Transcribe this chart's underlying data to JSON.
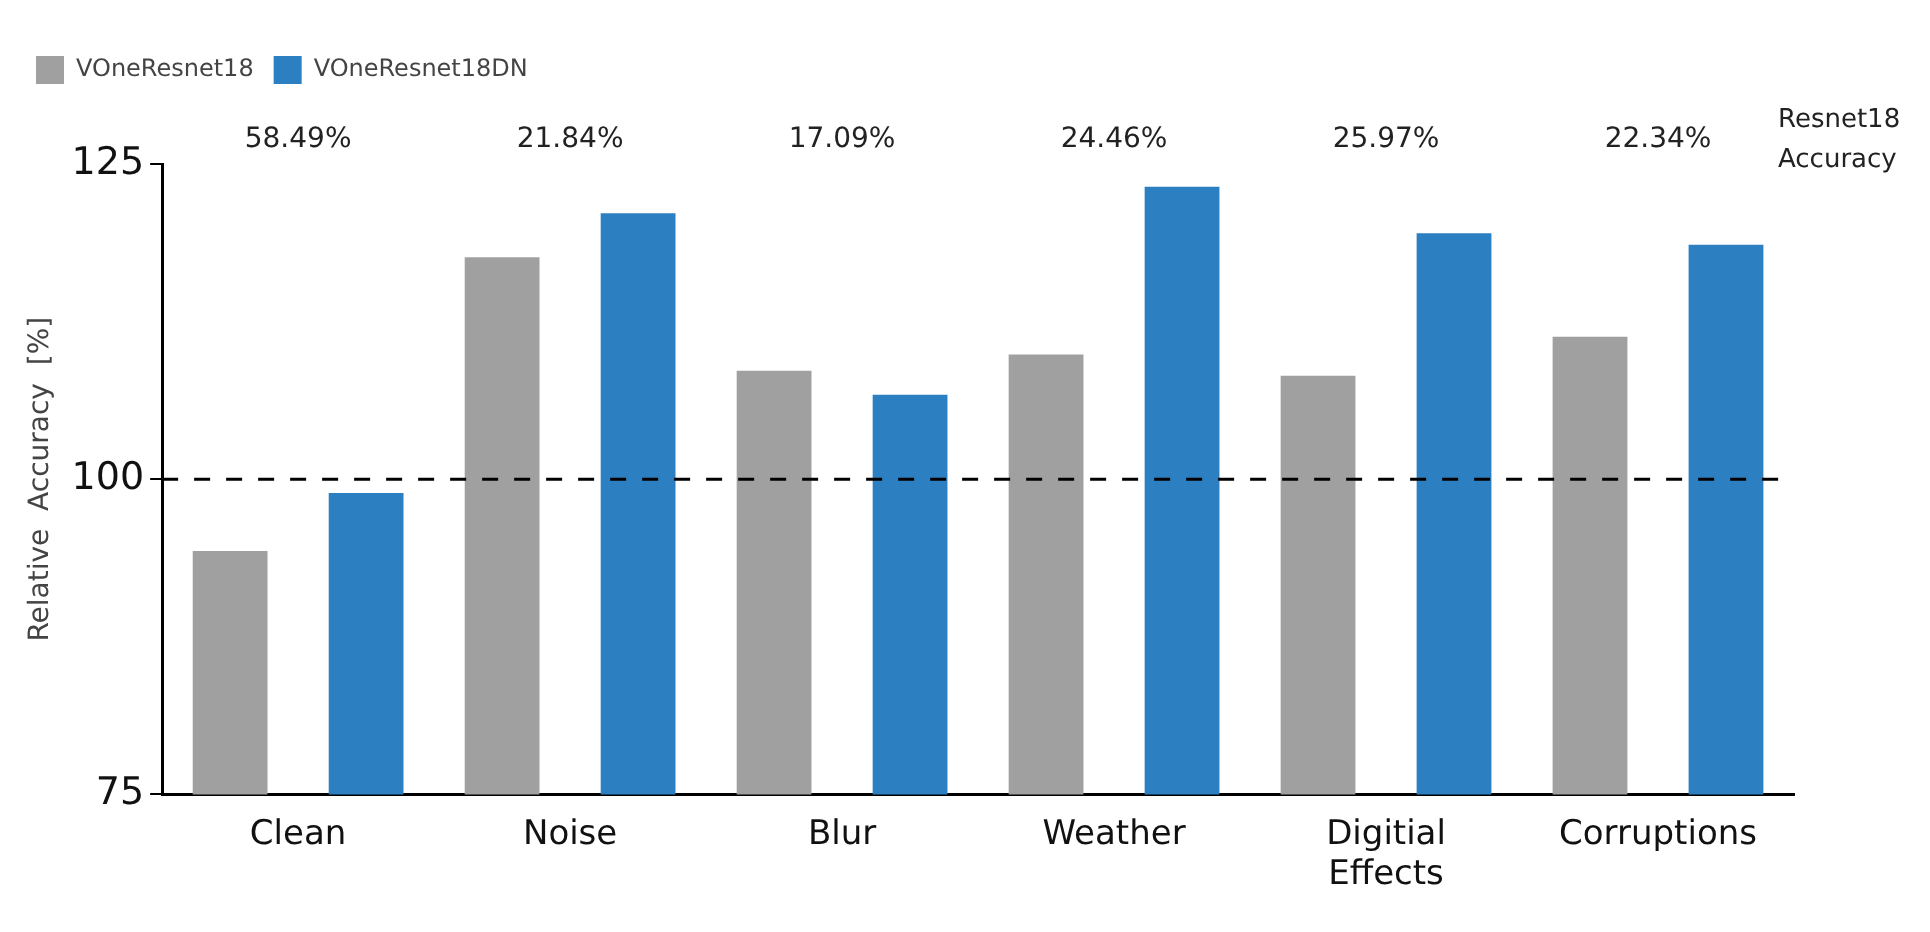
{
  "chart_data": {
    "type": "bar",
    "ylabel": "Relative  Accuracy  [%]",
    "categories": [
      "Clean",
      "Noise",
      "Blur",
      "Weather",
      "Digitial Effects",
      "Corruptions"
    ],
    "series": [
      {
        "name": "VOneResnet18",
        "color": "#a0a0a0",
        "values": [
          94.3,
          117.6,
          108.6,
          109.9,
          108.2,
          111.3
        ]
      },
      {
        "name": "VOneResnet18DN",
        "color": "#2c7fc1",
        "values": [
          98.9,
          121.1,
          106.7,
          123.2,
          119.5,
          118.6
        ]
      }
    ],
    "ylim": [
      75,
      125
    ],
    "yticks": [
      75,
      100,
      125
    ],
    "ref_lines": [
      {
        "axis": "y",
        "value": 100,
        "color": "#000000",
        "line_style": "dashed"
      }
    ],
    "annotations": [
      "58.49%",
      "21.84%",
      "17.09%",
      "24.46%",
      "25.97%",
      "22.34%",
      "Resnet18\nAccuracy"
    ],
    "grid": false,
    "legend": "top left"
  }
}
